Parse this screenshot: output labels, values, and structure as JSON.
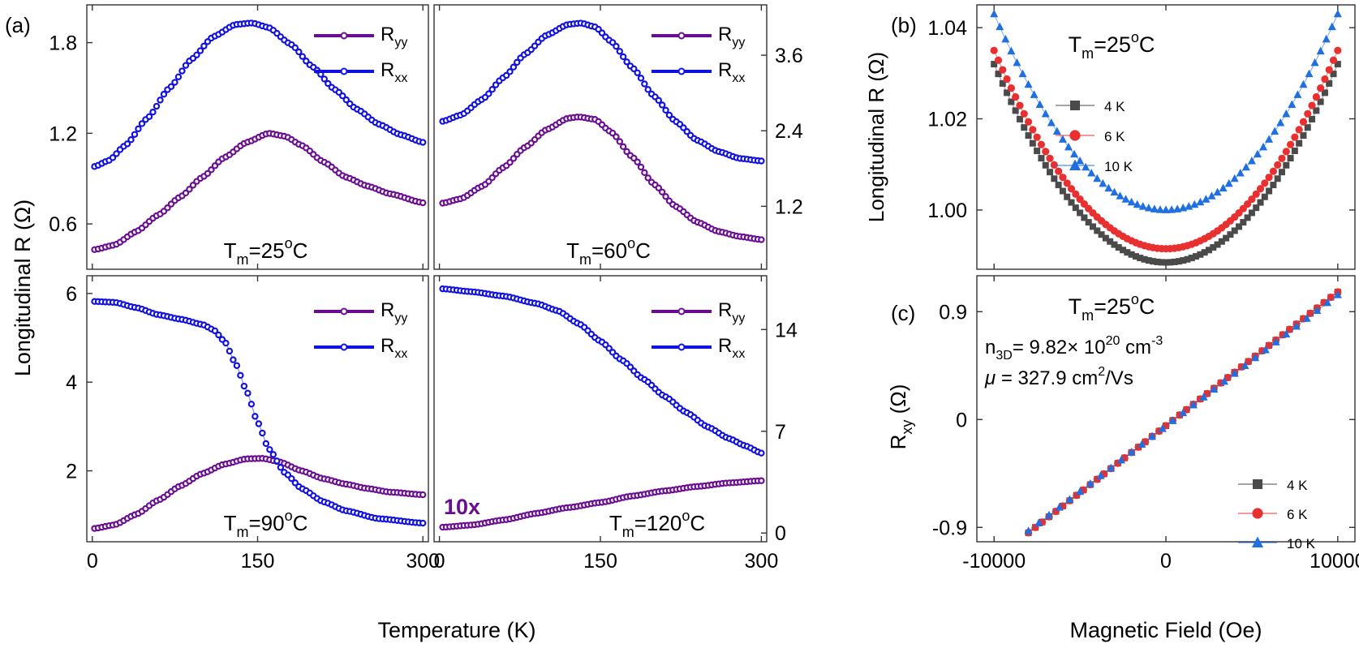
{
  "figure": {
    "label_a": "(a)",
    "label_b": "(b)",
    "label_c": "(c)",
    "ylabel_a": "Longitudinal R (Ω)",
    "xlabel_a": "Temperature (K)"
  },
  "chart_data": [
    {
      "id": "a1",
      "type": "line",
      "annotation": {
        "main": "T",
        "sub": "m",
        "rest": "=25",
        "sup": "o",
        "tail": "C"
      },
      "xlim": [
        -5,
        305
      ],
      "ylim": [
        0.3,
        2.05
      ],
      "x_ticks": [
        0,
        150,
        300
      ],
      "y_ticks": [
        0.6,
        1.2,
        1.8
      ],
      "y_tick_labels": [
        "0.6",
        "1.2",
        "1.8"
      ],
      "y_axis_side": "left",
      "legend": [
        {
          "main": "R",
          "sub": "yy",
          "color": "#6a0d91"
        },
        {
          "main": "R",
          "sub": "xx",
          "color": "#1010e0"
        }
      ],
      "series": [
        {
          "name": "Ryy",
          "color": "#6a0d91",
          "points": [
            [
              2,
              0.43
            ],
            [
              20,
              0.46
            ],
            [
              40,
              0.55
            ],
            [
              60,
              0.66
            ],
            [
              80,
              0.78
            ],
            [
              100,
              0.91
            ],
            [
              120,
              1.04
            ],
            [
              140,
              1.14
            ],
            [
              160,
              1.2
            ],
            [
              175,
              1.18
            ],
            [
              190,
              1.12
            ],
            [
              210,
              1.01
            ],
            [
              230,
              0.91
            ],
            [
              250,
              0.85
            ],
            [
              270,
              0.8
            ],
            [
              300,
              0.74
            ]
          ]
        },
        {
          "name": "Rxx",
          "color": "#1010e0",
          "points": [
            [
              2,
              0.98
            ],
            [
              15,
              1.02
            ],
            [
              30,
              1.12
            ],
            [
              50,
              1.3
            ],
            [
              70,
              1.5
            ],
            [
              90,
              1.69
            ],
            [
              110,
              1.84
            ],
            [
              130,
              1.92
            ],
            [
              145,
              1.93
            ],
            [
              160,
              1.9
            ],
            [
              180,
              1.79
            ],
            [
              200,
              1.64
            ],
            [
              220,
              1.49
            ],
            [
              240,
              1.36
            ],
            [
              260,
              1.26
            ],
            [
              280,
              1.19
            ],
            [
              300,
              1.14
            ]
          ]
        }
      ]
    },
    {
      "id": "a2",
      "type": "line",
      "annotation": {
        "main": "T",
        "sub": "m",
        "rest": "=60",
        "sup": "o",
        "tail": "C"
      },
      "xlim": [
        -5,
        305
      ],
      "ylim": [
        0.2,
        4.4
      ],
      "x_ticks": [
        0,
        150,
        300
      ],
      "y_ticks": [
        1.2,
        2.4,
        3.6
      ],
      "y_tick_labels": [
        "1.2",
        "2.4",
        "3.6"
      ],
      "y_axis_side": "right",
      "legend": [
        {
          "main": "R",
          "sub": "yy",
          "color": "#6a0d91"
        },
        {
          "main": "R",
          "sub": "xx",
          "color": "#1010e0"
        }
      ],
      "series": [
        {
          "name": "Ryy",
          "color": "#6a0d91",
          "points": [
            [
              3,
              1.25
            ],
            [
              20,
              1.32
            ],
            [
              40,
              1.52
            ],
            [
              60,
              1.82
            ],
            [
              80,
              2.14
            ],
            [
              100,
              2.42
            ],
            [
              120,
              2.6
            ],
            [
              130,
              2.62
            ],
            [
              145,
              2.58
            ],
            [
              160,
              2.38
            ],
            [
              180,
              1.98
            ],
            [
              200,
              1.55
            ],
            [
              220,
              1.2
            ],
            [
              240,
              0.95
            ],
            [
              260,
              0.8
            ],
            [
              280,
              0.72
            ],
            [
              300,
              0.67
            ]
          ]
        },
        {
          "name": "Rxx",
          "color": "#1010e0",
          "points": [
            [
              3,
              2.55
            ],
            [
              20,
              2.65
            ],
            [
              40,
              2.9
            ],
            [
              60,
              3.25
            ],
            [
              80,
              3.62
            ],
            [
              100,
              3.92
            ],
            [
              120,
              4.09
            ],
            [
              132,
              4.11
            ],
            [
              145,
              4.05
            ],
            [
              160,
              3.82
            ],
            [
              180,
              3.4
            ],
            [
              200,
              2.95
            ],
            [
              220,
              2.55
            ],
            [
              240,
              2.25
            ],
            [
              260,
              2.07
            ],
            [
              280,
              1.96
            ],
            [
              300,
              1.92
            ]
          ]
        }
      ]
    },
    {
      "id": "a3",
      "type": "line",
      "annotation": {
        "main": "T",
        "sub": "m",
        "rest": "=90",
        "sup": "o",
        "tail": "C"
      },
      "xlim": [
        -5,
        305
      ],
      "ylim": [
        0.4,
        6.4
      ],
      "x_ticks": [
        0,
        150,
        300
      ],
      "x_tick_labels": [
        "0",
        "150",
        "300"
      ],
      "y_ticks": [
        2,
        4,
        6
      ],
      "y_tick_labels": [
        "2",
        "4",
        "6"
      ],
      "y_axis_side": "left",
      "legend": [
        {
          "main": "R",
          "sub": "yy",
          "color": "#6a0d91"
        },
        {
          "main": "R",
          "sub": "xx",
          "color": "#1010e0"
        }
      ],
      "series": [
        {
          "name": "Ryy",
          "color": "#6a0d91",
          "points": [
            [
              2,
              0.7
            ],
            [
              20,
              0.78
            ],
            [
              40,
              1.02
            ],
            [
              60,
              1.34
            ],
            [
              80,
              1.66
            ],
            [
              100,
              1.94
            ],
            [
              120,
              2.15
            ],
            [
              140,
              2.27
            ],
            [
              155,
              2.28
            ],
            [
              170,
              2.2
            ],
            [
              190,
              2.0
            ],
            [
              210,
              1.82
            ],
            [
              230,
              1.7
            ],
            [
              250,
              1.6
            ],
            [
              270,
              1.52
            ],
            [
              300,
              1.46
            ]
          ]
        },
        {
          "name": "Rxx",
          "color": "#1010e0",
          "points": [
            [
              2,
              5.82
            ],
            [
              20,
              5.8
            ],
            [
              40,
              5.68
            ],
            [
              60,
              5.52
            ],
            [
              80,
              5.42
            ],
            [
              100,
              5.3
            ],
            [
              110,
              5.18
            ],
            [
              120,
              4.92
            ],
            [
              130,
              4.42
            ],
            [
              140,
              3.8
            ],
            [
              150,
              3.1
            ],
            [
              160,
              2.5
            ],
            [
              175,
              1.95
            ],
            [
              190,
              1.6
            ],
            [
              210,
              1.3
            ],
            [
              230,
              1.1
            ],
            [
              260,
              0.92
            ],
            [
              300,
              0.82
            ]
          ]
        }
      ]
    },
    {
      "id": "a4",
      "type": "line",
      "annotation": {
        "main": "T",
        "sub": "m",
        "rest": "=120",
        "sup": "o",
        "tail": "C"
      },
      "badge": "10x",
      "xlim": [
        -5,
        305
      ],
      "ylim": [
        -0.6,
        17.7
      ],
      "x_ticks": [
        0,
        150,
        300
      ],
      "x_tick_labels": [
        "0",
        "150",
        "300"
      ],
      "y_ticks": [
        0,
        7,
        14
      ],
      "y_tick_labels": [
        "0",
        "7",
        "14"
      ],
      "y_axis_side": "right",
      "legend": [
        {
          "main": "R",
          "sub": "yy",
          "color": "#6a0d91"
        },
        {
          "main": "R",
          "sub": "xx",
          "color": "#1010e0"
        }
      ],
      "series": [
        {
          "name": "Ryy",
          "color": "#6a0d91",
          "points": [
            [
              3,
              0.4
            ],
            [
              30,
              0.55
            ],
            [
              60,
              0.9
            ],
            [
              90,
              1.35
            ],
            [
              120,
              1.75
            ],
            [
              150,
              2.1
            ],
            [
              180,
              2.55
            ],
            [
              210,
              2.9
            ],
            [
              240,
              3.2
            ],
            [
              270,
              3.45
            ],
            [
              300,
              3.6
            ]
          ]
        },
        {
          "name": "Rxx",
          "color": "#1010e0",
          "points": [
            [
              3,
              16.8
            ],
            [
              30,
              16.6
            ],
            [
              60,
              16.3
            ],
            [
              90,
              15.8
            ],
            [
              110,
              15.3
            ],
            [
              130,
              14.4
            ],
            [
              150,
              13.2
            ],
            [
              170,
              11.9
            ],
            [
              190,
              10.6
            ],
            [
              210,
              9.4
            ],
            [
              230,
              8.3
            ],
            [
              250,
              7.3
            ],
            [
              270,
              6.5
            ],
            [
              285,
              6.0
            ],
            [
              300,
              5.5
            ]
          ]
        }
      ]
    },
    {
      "id": "b",
      "type": "scatter",
      "ylabel": "Longitudinal R (Ω)",
      "annotation": {
        "main": "T",
        "sub": "m",
        "rest": "=25",
        "sup": "o",
        "tail": "C"
      },
      "xlim": [
        -11000,
        11000
      ],
      "ylim": [
        0.987,
        1.045
      ],
      "x_ticks": [
        -10000,
        0,
        10000
      ],
      "y_ticks": [
        1.0,
        1.02,
        1.04
      ],
      "y_tick_labels": [
        "1.00",
        "1.02",
        "1.04"
      ],
      "legend": [
        {
          "label": "4 K",
          "color": "#4a4a4a",
          "marker": "square"
        },
        {
          "label": "6 K",
          "color": "#e83030",
          "marker": "circle"
        },
        {
          "label": "10 K",
          "color": "#1f6fe0",
          "marker": "triangle"
        }
      ],
      "series": [
        {
          "name": "4 K",
          "color": "#4a4a4a",
          "marker": "square",
          "y0": 0.9885,
          "y_end": 1.032,
          "points_count": 81
        },
        {
          "name": "6 K",
          "color": "#e83030",
          "marker": "circle",
          "y0": 0.9915,
          "y_end": 1.035,
          "points_count": 81
        },
        {
          "name": "10 K",
          "color": "#1f6fe0",
          "marker": "triangle",
          "y0": 1.0,
          "y_end": 1.043,
          "points_count": 61
        }
      ]
    },
    {
      "id": "c",
      "type": "scatter",
      "ylabel_main": "R",
      "ylabel_sub": "xy",
      "ylabel_tail": " (Ω)",
      "xlabel": "Magnetic Field (Oe)",
      "annotation": {
        "main": "T",
        "sub": "m",
        "rest": "=25",
        "sup": "o",
        "tail": "C"
      },
      "density_text": {
        "main": "n",
        "sub": "3D",
        "mid": "= 9.82× 10",
        "sup": "20",
        "tail": " cm",
        "sup2": "-3"
      },
      "mobility_text": {
        "symbol": "μ",
        "rest": " = 327.9 cm",
        "sup": "2",
        "tail": "/Vs"
      },
      "xlim": [
        -11000,
        11000
      ],
      "ylim": [
        -1.02,
        1.2
      ],
      "x_ticks": [
        -10000,
        0,
        10000
      ],
      "x_tick_labels": [
        "-10000",
        "0",
        "10000"
      ],
      "y_ticks": [
        -0.9,
        0,
        0.9
      ],
      "y_tick_labels": [
        "-0.9",
        "0",
        "0.9"
      ],
      "legend": [
        {
          "label": "4 K",
          "color": "#4a4a4a",
          "marker": "square"
        },
        {
          "label": "6 K",
          "color": "#e83030",
          "marker": "circle"
        },
        {
          "label": "10 K",
          "color": "#1f6fe0",
          "marker": "triangle"
        }
      ],
      "series": [
        {
          "name": "4 K",
          "color": "#4a4a4a",
          "marker": "square",
          "x_range": [
            -8000,
            10000
          ],
          "y_range": [
            -0.945,
            1.065
          ],
          "points_count": 46
        },
        {
          "name": "6 K",
          "color": "#e83030",
          "marker": "circle",
          "x_range": [
            -8000,
            10000
          ],
          "y_range": [
            -0.945,
            1.065
          ],
          "points_count": 46
        },
        {
          "name": "10 K",
          "color": "#1f6fe0",
          "marker": "triangle",
          "x_range": [
            -8000,
            10000
          ],
          "y_range": [
            -0.93,
            1.04
          ],
          "points_count": 31
        }
      ]
    }
  ]
}
